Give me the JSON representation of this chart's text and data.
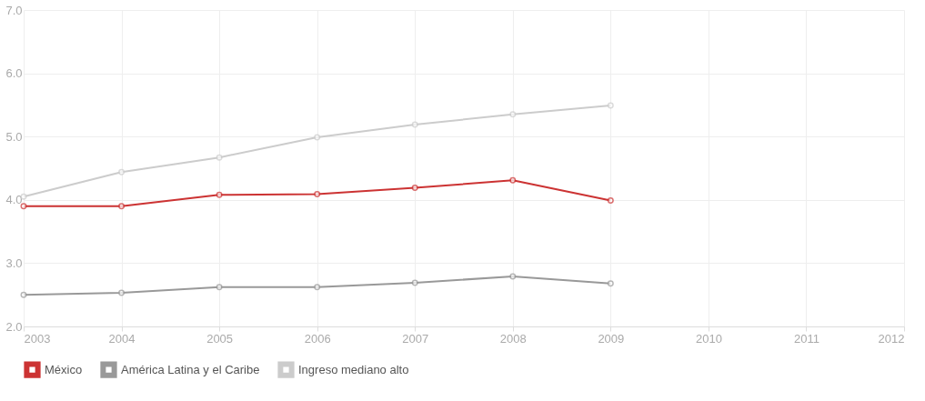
{
  "chart_data": {
    "type": "line",
    "x": [
      2003,
      2004,
      2005,
      2006,
      2007,
      2008,
      2009
    ],
    "series": [
      {
        "name": "México",
        "color": "#cc3333",
        "values": [
          3.9,
          3.9,
          4.08,
          4.09,
          4.19,
          4.31,
          3.99
        ]
      },
      {
        "name": "América Latina y el Caribe",
        "color": "#999999",
        "values": [
          2.5,
          2.53,
          2.62,
          2.62,
          2.69,
          2.79,
          2.68
        ]
      },
      {
        "name": "Ingreso mediano alto",
        "color": "#cccccc",
        "values": [
          4.05,
          4.44,
          4.67,
          4.99,
          5.19,
          5.35,
          5.49
        ]
      }
    ],
    "xlim": [
      2003,
      2012
    ],
    "xticks": [
      2003,
      2004,
      2005,
      2006,
      2007,
      2008,
      2009,
      2010,
      2011,
      2012
    ],
    "ylim": [
      2.0,
      7.0
    ],
    "yticks": [
      {
        "value": 2,
        "label": "2.0"
      },
      {
        "value": 3,
        "label": "3.0"
      },
      {
        "value": 4,
        "label": "4.0"
      },
      {
        "value": 5,
        "label": "5.0"
      },
      {
        "value": 6,
        "label": "6.0"
      },
      {
        "value": 7,
        "label": "7.0"
      }
    ],
    "grid": true,
    "legend": "bottom left",
    "marker": "circle",
    "line_style": "solid"
  }
}
